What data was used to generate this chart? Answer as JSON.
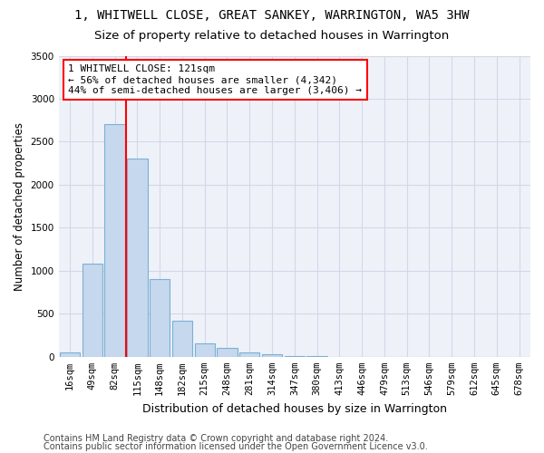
{
  "title": "1, WHITWELL CLOSE, GREAT SANKEY, WARRINGTON, WA5 3HW",
  "subtitle": "Size of property relative to detached houses in Warrington",
  "xlabel": "Distribution of detached houses by size in Warrington",
  "ylabel": "Number of detached properties",
  "categories": [
    "16sqm",
    "49sqm",
    "82sqm",
    "115sqm",
    "148sqm",
    "182sqm",
    "215sqm",
    "248sqm",
    "281sqm",
    "314sqm",
    "347sqm",
    "380sqm",
    "413sqm",
    "446sqm",
    "479sqm",
    "513sqm",
    "546sqm",
    "579sqm",
    "612sqm",
    "645sqm",
    "678sqm"
  ],
  "values": [
    50,
    1080,
    2700,
    2300,
    900,
    420,
    160,
    100,
    50,
    30,
    5,
    5,
    2,
    0,
    0,
    0,
    0,
    0,
    0,
    0,
    0
  ],
  "bar_color": "#c5d8ee",
  "bar_edge_color": "#7bafd4",
  "vline_color": "red",
  "vline_pos": 2.5,
  "annotation_text": "1 WHITWELL CLOSE: 121sqm\n← 56% of detached houses are smaller (4,342)\n44% of semi-detached houses are larger (3,406) →",
  "annotation_box_color": "white",
  "annotation_box_edge": "red",
  "ylim": [
    0,
    3500
  ],
  "yticks": [
    0,
    500,
    1000,
    1500,
    2000,
    2500,
    3000,
    3500
  ],
  "grid_color": "#d0d8e8",
  "plot_bg_color": "#eef2f8",
  "footer1": "Contains HM Land Registry data © Crown copyright and database right 2024.",
  "footer2": "Contains public sector information licensed under the Open Government Licence v3.0.",
  "title_fontsize": 10,
  "subtitle_fontsize": 9.5,
  "xlabel_fontsize": 9,
  "ylabel_fontsize": 8.5,
  "tick_fontsize": 7.5,
  "annotation_fontsize": 8,
  "footer_fontsize": 7
}
